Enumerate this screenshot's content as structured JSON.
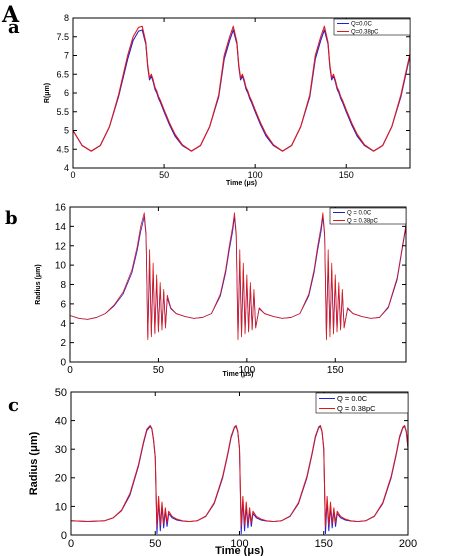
{
  "figure": {
    "label": "A"
  },
  "colors": {
    "q0": "#1f1fd6",
    "q038": "#e01818",
    "axis": "#000000",
    "background": "#ffffff"
  },
  "chart_data": [
    {
      "panel_letter": "a",
      "type": "line",
      "xlabel": "Time (μs)",
      "ylabel": "R(μm)",
      "xlim": [
        0,
        185
      ],
      "ylim": [
        4,
        8
      ],
      "xticks": [
        0,
        50,
        100,
        150
      ],
      "xtick_labels": [
        "0",
        "50",
        "100",
        "150"
      ],
      "yticks": [
        4,
        4.5,
        5,
        5.5,
        6,
        6.5,
        7,
        7.5,
        8
      ],
      "ytick_labels": [
        "4",
        "4.5",
        "5",
        "5.5",
        "6",
        "6.5",
        "7",
        "7.5",
        "8"
      ],
      "legend_position": "top-right",
      "grid": false,
      "series": [
        {
          "name": "Q=0.0C",
          "color_key": "q0",
          "x": [
            0,
            5,
            10,
            15,
            20,
            25,
            30,
            33,
            36,
            38,
            40,
            41,
            42,
            43,
            44,
            45,
            46,
            47,
            48,
            50,
            53,
            56,
            60,
            65,
            70,
            75,
            80,
            83,
            86,
            88,
            90,
            91,
            92,
            93,
            94,
            95,
            96,
            97,
            98,
            100,
            103,
            106,
            110,
            115,
            120,
            125,
            130,
            133,
            136,
            138,
            140,
            141,
            142,
            143,
            144,
            145,
            146,
            147,
            148,
            150,
            153,
            156,
            160,
            165,
            170,
            175,
            180,
            185
          ],
          "y": [
            5.0,
            4.6,
            4.45,
            4.6,
            5.1,
            5.9,
            6.9,
            7.4,
            7.65,
            7.68,
            7.3,
            6.7,
            6.35,
            6.45,
            6.3,
            6.1,
            6.0,
            5.85,
            5.75,
            5.5,
            5.15,
            4.85,
            4.6,
            4.45,
            4.6,
            5.1,
            5.9,
            6.9,
            7.4,
            7.68,
            7.3,
            6.7,
            6.35,
            6.45,
            6.3,
            6.1,
            6.0,
            5.85,
            5.75,
            5.5,
            5.15,
            4.85,
            4.6,
            4.45,
            4.6,
            5.1,
            5.9,
            6.9,
            7.4,
            7.68,
            7.3,
            6.7,
            6.35,
            6.45,
            6.3,
            6.1,
            6.0,
            5.85,
            5.75,
            5.5,
            5.15,
            4.85,
            4.6,
            4.45,
            4.6,
            5.1,
            5.9,
            7.0
          ]
        },
        {
          "name": "Q=0.38pC",
          "color_key": "q038",
          "x": [
            0,
            5,
            10,
            15,
            20,
            25,
            30,
            33,
            36,
            38,
            40,
            41,
            42,
            43,
            44,
            45,
            46,
            47,
            48,
            50,
            53,
            56,
            60,
            65,
            70,
            75,
            80,
            83,
            86,
            88,
            90,
            91,
            92,
            93,
            94,
            95,
            96,
            97,
            98,
            100,
            103,
            106,
            110,
            115,
            120,
            125,
            130,
            133,
            136,
            138,
            140,
            141,
            142,
            143,
            144,
            145,
            146,
            147,
            148,
            150,
            153,
            156,
            160,
            165,
            170,
            175,
            180,
            185
          ],
          "y": [
            5.0,
            4.6,
            4.45,
            4.6,
            5.1,
            5.95,
            7.0,
            7.5,
            7.75,
            7.78,
            7.35,
            6.75,
            6.4,
            6.5,
            6.35,
            6.15,
            6.05,
            5.9,
            5.8,
            5.55,
            5.2,
            4.9,
            4.62,
            4.45,
            4.6,
            5.1,
            5.95,
            7.0,
            7.5,
            7.78,
            7.35,
            6.75,
            6.4,
            6.5,
            6.35,
            6.15,
            6.05,
            5.9,
            5.8,
            5.55,
            5.2,
            4.9,
            4.62,
            4.45,
            4.6,
            5.1,
            5.95,
            7.0,
            7.5,
            7.78,
            7.35,
            6.75,
            6.4,
            6.5,
            6.35,
            6.15,
            6.05,
            5.9,
            5.8,
            5.55,
            5.2,
            4.9,
            4.62,
            4.45,
            4.6,
            5.1,
            5.95,
            7.05
          ]
        }
      ]
    },
    {
      "panel_letter": "b",
      "type": "line",
      "xlabel": "Time (μs)",
      "ylabel": "Radius (μm)",
      "xlim": [
        0,
        190
      ],
      "ylim": [
        0,
        16
      ],
      "xticks": [
        0,
        50,
        100,
        150
      ],
      "xtick_labels": [
        "0",
        "50",
        "100",
        "150"
      ],
      "yticks": [
        0,
        2,
        4,
        6,
        8,
        10,
        12,
        14,
        16
      ],
      "ytick_labels": [
        "0",
        "2",
        "4",
        "6",
        "8",
        "10",
        "12",
        "14",
        "16"
      ],
      "legend_position": "top-right",
      "grid": false,
      "series": [
        {
          "name": "Q = 0.0C",
          "color_key": "q0",
          "x": [
            0,
            5,
            10,
            15,
            20,
            25,
            30,
            35,
            38,
            40,
            42,
            43,
            44,
            45,
            46,
            47,
            48,
            49,
            50,
            51,
            52,
            53,
            54,
            55,
            57,
            60,
            65,
            70,
            75,
            80,
            85,
            88,
            90,
            92,
            93,
            94,
            95,
            96,
            97,
            98,
            99,
            100,
            101,
            102,
            103,
            104,
            105,
            107,
            110,
            115,
            120,
            125,
            130,
            135,
            138,
            140,
            142,
            143,
            144,
            145,
            146,
            147,
            148,
            149,
            150,
            151,
            152,
            153,
            154,
            155,
            157,
            160,
            165,
            170,
            175,
            180,
            185,
            190
          ],
          "y": [
            4.8,
            4.5,
            4.4,
            4.6,
            5.0,
            5.8,
            7.0,
            9.2,
            11.5,
            13.5,
            15.0,
            13.0,
            2.5,
            10.5,
            2.8,
            9.5,
            3.0,
            8.5,
            3.2,
            7.8,
            3.4,
            7.2,
            3.6,
            6.6,
            5.5,
            5.0,
            4.7,
            4.5,
            4.6,
            5.0,
            6.8,
            9.2,
            11.5,
            13.5,
            15.0,
            13.0,
            2.5,
            10.5,
            2.8,
            9.5,
            3.0,
            8.5,
            3.2,
            7.8,
            3.4,
            7.2,
            3.6,
            5.5,
            5.0,
            4.7,
            4.5,
            4.6,
            5.0,
            6.8,
            9.2,
            11.5,
            13.5,
            15.0,
            13.0,
            2.5,
            10.5,
            2.8,
            9.5,
            3.0,
            8.5,
            3.2,
            7.8,
            3.4,
            7.2,
            3.6,
            5.5,
            5.0,
            4.7,
            4.5,
            4.6,
            5.6,
            8.5,
            14.0
          ]
        },
        {
          "name": "Q = 0.38pC",
          "color_key": "q038",
          "x": [
            0,
            5,
            10,
            15,
            20,
            25,
            30,
            35,
            38,
            40,
            42,
            43,
            44,
            45,
            46,
            47,
            48,
            49,
            50,
            51,
            52,
            53,
            54,
            55,
            57,
            60,
            65,
            70,
            75,
            80,
            85,
            88,
            90,
            92,
            93,
            94,
            95,
            96,
            97,
            98,
            99,
            100,
            101,
            102,
            103,
            104,
            105,
            107,
            110,
            115,
            120,
            125,
            130,
            135,
            138,
            140,
            142,
            143,
            144,
            145,
            146,
            147,
            148,
            149,
            150,
            151,
            152,
            153,
            154,
            155,
            157,
            160,
            165,
            170,
            175,
            180,
            185,
            190
          ],
          "y": [
            4.8,
            4.5,
            4.4,
            4.6,
            5.0,
            5.9,
            7.2,
            9.5,
            11.9,
            14.0,
            15.4,
            13.3,
            2.3,
            11.6,
            2.6,
            10.2,
            2.9,
            9.0,
            3.1,
            8.2,
            3.3,
            7.5,
            3.5,
            6.9,
            5.6,
            5.0,
            4.7,
            4.5,
            4.6,
            5.0,
            7.0,
            9.5,
            11.9,
            14.0,
            15.4,
            13.3,
            2.3,
            11.6,
            2.6,
            10.2,
            2.9,
            9.0,
            3.1,
            8.2,
            3.3,
            7.5,
            3.5,
            5.6,
            5.0,
            4.7,
            4.5,
            4.6,
            5.0,
            7.0,
            9.5,
            11.9,
            14.0,
            15.4,
            13.3,
            2.3,
            11.6,
            2.6,
            10.2,
            2.9,
            9.0,
            3.1,
            8.2,
            3.3,
            7.5,
            3.5,
            5.6,
            5.0,
            4.7,
            4.5,
            4.6,
            5.7,
            8.7,
            14.2
          ]
        }
      ]
    },
    {
      "panel_letter": "c",
      "type": "line",
      "xlabel": "Time (μs)",
      "ylabel": "Radius (μm)",
      "xlim": [
        0,
        200
      ],
      "ylim": [
        0,
        50
      ],
      "xticks": [
        0,
        50,
        100,
        150,
        200
      ],
      "xtick_labels": [
        "0",
        "50",
        "100",
        "150",
        "200"
      ],
      "yticks": [
        0,
        10,
        20,
        30,
        40,
        50
      ],
      "ytick_labels": [
        "0",
        "10",
        "20",
        "30",
        "40",
        "50"
      ],
      "legend_position": "top-right",
      "grid": false,
      "series": [
        {
          "name": "Q = 0.0C",
          "color_key": "q0",
          "x": [
            0,
            10,
            20,
            25,
            30,
            35,
            40,
            43,
            45,
            47,
            48,
            49,
            50,
            51,
            52,
            53,
            54,
            55,
            56,
            57,
            58,
            60,
            63,
            66,
            70,
            75,
            80,
            85,
            90,
            93,
            95,
            97,
            98,
            99,
            100,
            101,
            102,
            103,
            104,
            105,
            106,
            107,
            108,
            110,
            113,
            116,
            120,
            125,
            130,
            135,
            140,
            143,
            145,
            147,
            148,
            149,
            150,
            151,
            152,
            153,
            154,
            155,
            156,
            157,
            158,
            160,
            163,
            166,
            170,
            175,
            180,
            185,
            190,
            193,
            195,
            197,
            198,
            199,
            200
          ],
          "y": [
            5.0,
            4.7,
            5.0,
            6.0,
            8.5,
            14.0,
            24.0,
            32.0,
            36.5,
            38.0,
            37.0,
            33.0,
            27.0,
            0.5,
            12.0,
            1.5,
            10.0,
            2.5,
            8.5,
            3.0,
            7.5,
            6.0,
            5.2,
            4.9,
            4.7,
            5.0,
            6.5,
            11.0,
            20.0,
            28.0,
            34.0,
            37.5,
            38.0,
            36.0,
            30.0,
            0.5,
            12.0,
            1.5,
            10.0,
            2.5,
            8.5,
            3.0,
            7.5,
            6.0,
            5.2,
            4.9,
            4.7,
            5.0,
            6.5,
            11.0,
            20.0,
            28.0,
            34.0,
            37.5,
            38.0,
            36.0,
            30.0,
            0.5,
            12.0,
            1.5,
            10.0,
            2.5,
            8.5,
            3.0,
            7.5,
            6.0,
            5.2,
            4.9,
            4.7,
            5.0,
            6.5,
            11.0,
            20.0,
            28.0,
            34.0,
            37.5,
            38.0,
            36.0,
            30.0
          ]
        },
        {
          "name": "Q = 0.38pC",
          "color_key": "q038",
          "x": [
            0,
            10,
            20,
            25,
            30,
            35,
            40,
            43,
            45,
            47,
            48,
            49,
            50,
            51,
            52,
            53,
            54,
            55,
            56,
            57,
            58,
            60,
            63,
            66,
            70,
            75,
            80,
            85,
            90,
            93,
            95,
            97,
            98,
            99,
            100,
            101,
            102,
            103,
            104,
            105,
            106,
            107,
            108,
            110,
            113,
            116,
            120,
            125,
            130,
            135,
            140,
            143,
            145,
            147,
            148,
            149,
            150,
            151,
            152,
            153,
            154,
            155,
            156,
            157,
            158,
            160,
            163,
            166,
            170,
            175,
            180,
            185,
            190,
            193,
            195,
            197,
            198,
            199,
            200
          ],
          "y": [
            5.0,
            4.7,
            5.0,
            6.0,
            8.7,
            14.5,
            24.5,
            32.5,
            37.0,
            38.3,
            37.3,
            33.5,
            27.5,
            3.0,
            13.5,
            3.5,
            11.5,
            4.0,
            9.5,
            4.3,
            8.3,
            6.5,
            5.5,
            5.0,
            4.7,
            5.0,
            6.6,
            11.3,
            20.5,
            28.5,
            34.5,
            37.8,
            38.3,
            36.3,
            30.5,
            3.0,
            13.5,
            3.5,
            11.5,
            4.0,
            9.5,
            4.3,
            8.3,
            6.5,
            5.5,
            5.0,
            4.7,
            5.0,
            6.6,
            11.3,
            20.5,
            28.5,
            34.5,
            37.8,
            38.3,
            36.3,
            30.5,
            3.0,
            13.5,
            3.5,
            11.5,
            4.0,
            9.5,
            4.3,
            8.3,
            6.5,
            5.5,
            5.0,
            4.7,
            5.0,
            6.6,
            11.3,
            20.5,
            28.5,
            34.5,
            37.8,
            38.3,
            36.3,
            30.5
          ]
        }
      ]
    }
  ]
}
